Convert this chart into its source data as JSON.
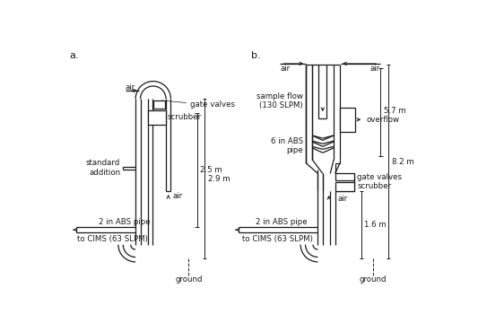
{
  "fig_width": 5.33,
  "fig_height": 3.6,
  "dpi": 100,
  "bg_color": "#ffffff",
  "lc": "#1a1a1a",
  "lw": 0.9,
  "fs": 6.2,
  "label_a": "a.",
  "label_b": "b.",
  "ann_a": {
    "air_top": "air",
    "gate_valves": "gate valves",
    "scrubber": "scrubber",
    "standard_addition": "standard\naddition",
    "air_mid": "air",
    "dim_29": "2.9 m",
    "dim_25": "2.5 m",
    "pipe_label": "2 in ABS pipe",
    "cims": "to CIMS (63 SLPM)",
    "ground": "ground"
  },
  "ann_b": {
    "air_left": "air",
    "air_right": "air",
    "sample_flow": "sample flow\n(130 SLPM)",
    "dim_82": "8.2 m",
    "dim_57": "5.7 m",
    "pipe_6in": "6 in ABS\npipe",
    "overflow": "overflow",
    "gate_valves": "gate valves",
    "scrubber": "scrubber",
    "air_bot": "air",
    "dim_16": "1.6 m",
    "pipe_label": "2 in ABS pipe",
    "cims": "to CIMS (63 SLPM)",
    "ground": "ground"
  }
}
